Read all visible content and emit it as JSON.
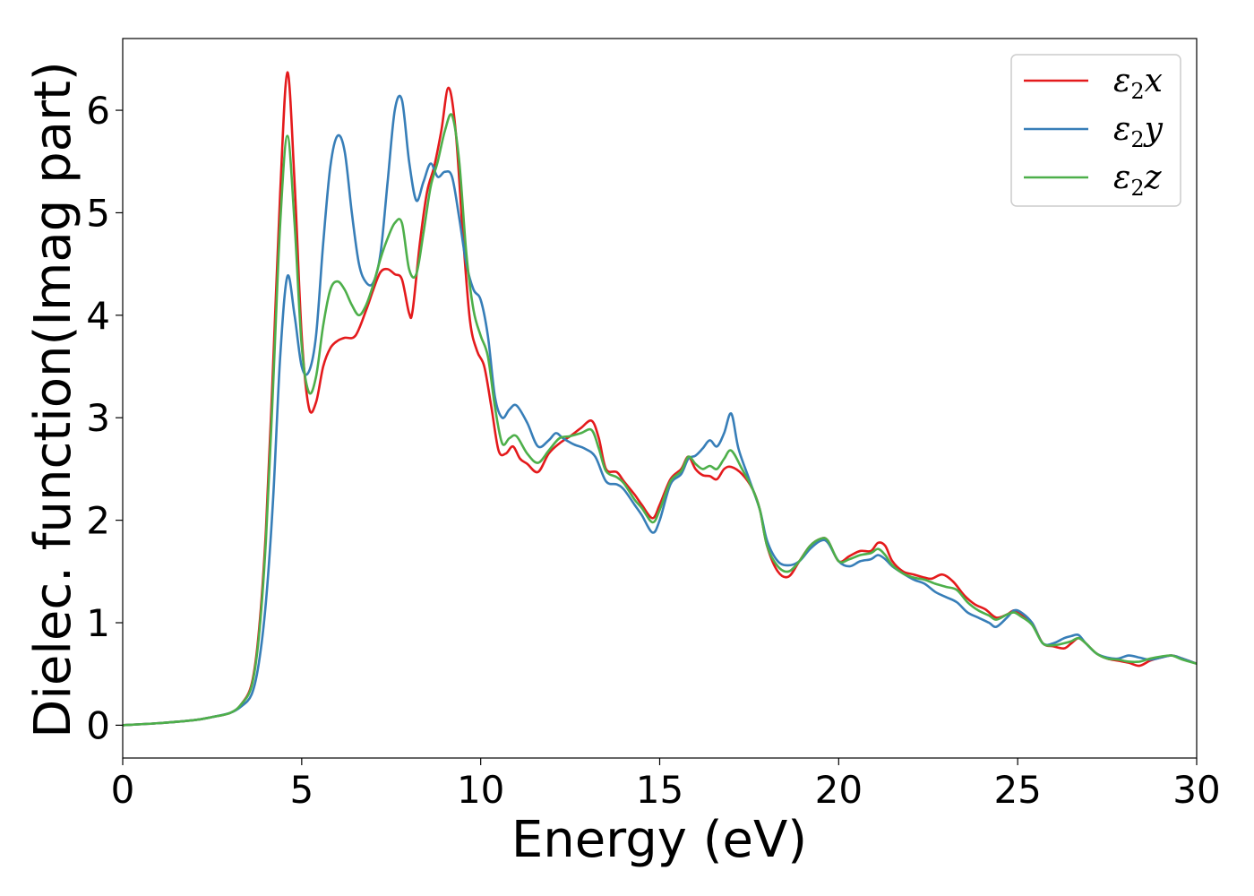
{
  "chart_data": {
    "type": "line",
    "title": "",
    "xlabel": "Energy (eV)",
    "ylabel": "Dielec. function(Imag part)",
    "xlim": [
      0,
      30
    ],
    "ylim": [
      -0.32,
      6.7
    ],
    "xticks": [
      0,
      5,
      10,
      15,
      20,
      25,
      30
    ],
    "yticks": [
      0,
      1,
      2,
      3,
      4,
      5,
      6
    ],
    "grid": false,
    "legend_position": "top-right",
    "series": [
      {
        "name": "ε2x",
        "legend_base": "ε",
        "legend_sub": "2",
        "legend_var": "x",
        "color": "#e41a1c",
        "x": [
          0,
          1,
          2,
          2.5,
          3,
          3.3,
          3.6,
          3.8,
          4.0,
          4.2,
          4.4,
          4.6,
          4.8,
          5.0,
          5.2,
          5.4,
          5.6,
          5.8,
          6.0,
          6.2,
          6.5,
          6.8,
          7.0,
          7.2,
          7.4,
          7.6,
          7.8,
          8.0,
          8.1,
          8.3,
          8.5,
          8.7,
          8.9,
          9.1,
          9.3,
          9.5,
          9.7,
          9.9,
          10.1,
          10.3,
          10.5,
          10.7,
          10.9,
          11.1,
          11.3,
          11.6,
          11.9,
          12.2,
          12.5,
          12.8,
          13.1,
          13.3,
          13.5,
          13.8,
          14.0,
          14.3,
          14.5,
          14.8,
          15.0,
          15.3,
          15.6,
          15.8,
          16.0,
          16.2,
          16.4,
          16.6,
          16.8,
          17.0,
          17.3,
          17.6,
          17.8,
          18.0,
          18.3,
          18.6,
          18.9,
          19.2,
          19.5,
          19.7,
          20.0,
          20.3,
          20.6,
          20.9,
          21.1,
          21.3,
          21.5,
          21.8,
          22.1,
          22.4,
          22.6,
          22.9,
          23.2,
          23.5,
          23.8,
          24.1,
          24.4,
          24.7,
          24.9,
          25.1,
          25.4,
          25.7,
          26.0,
          26.3,
          26.5,
          26.7,
          26.9,
          27.2,
          27.5,
          27.8,
          28.1,
          28.4,
          28.7,
          29.0,
          29.3,
          29.6,
          30.0
        ],
        "y": [
          0,
          0.02,
          0.05,
          0.08,
          0.12,
          0.2,
          0.4,
          0.9,
          1.9,
          3.5,
          5.2,
          6.37,
          5.3,
          3.8,
          3.1,
          3.15,
          3.5,
          3.68,
          3.75,
          3.78,
          3.8,
          4.05,
          4.25,
          4.42,
          4.45,
          4.4,
          4.35,
          4.02,
          4.05,
          4.7,
          5.2,
          5.45,
          5.8,
          6.22,
          5.8,
          4.8,
          3.95,
          3.65,
          3.5,
          3.1,
          2.68,
          2.65,
          2.72,
          2.6,
          2.55,
          2.47,
          2.65,
          2.75,
          2.82,
          2.9,
          2.97,
          2.8,
          2.5,
          2.47,
          2.38,
          2.25,
          2.15,
          2.02,
          2.15,
          2.4,
          2.5,
          2.62,
          2.5,
          2.44,
          2.43,
          2.4,
          2.5,
          2.52,
          2.45,
          2.3,
          2.1,
          1.75,
          1.5,
          1.45,
          1.6,
          1.75,
          1.82,
          1.8,
          1.6,
          1.65,
          1.7,
          1.7,
          1.78,
          1.75,
          1.6,
          1.5,
          1.47,
          1.44,
          1.43,
          1.47,
          1.4,
          1.27,
          1.18,
          1.13,
          1.05,
          1.08,
          1.12,
          1.08,
          1.0,
          0.8,
          0.77,
          0.75,
          0.8,
          0.85,
          0.8,
          0.7,
          0.65,
          0.63,
          0.61,
          0.58,
          0.63,
          0.66,
          0.68,
          0.65,
          0.6
        ]
      },
      {
        "name": "ε2y",
        "legend_base": "ε",
        "legend_sub": "2",
        "legend_var": "y",
        "color": "#377eb8",
        "x": [
          0,
          1,
          2,
          2.5,
          3,
          3.3,
          3.6,
          3.8,
          4.0,
          4.2,
          4.4,
          4.6,
          4.8,
          5.0,
          5.2,
          5.4,
          5.6,
          5.8,
          6.0,
          6.2,
          6.4,
          6.6,
          6.8,
          7.0,
          7.2,
          7.4,
          7.6,
          7.8,
          8.0,
          8.2,
          8.4,
          8.6,
          8.8,
          9.0,
          9.2,
          9.4,
          9.6,
          9.8,
          10.0,
          10.2,
          10.4,
          10.6,
          10.8,
          11.0,
          11.3,
          11.6,
          11.9,
          12.1,
          12.3,
          12.6,
          12.9,
          13.2,
          13.5,
          13.8,
          14.0,
          14.3,
          14.5,
          14.8,
          15.0,
          15.3,
          15.6,
          15.8,
          16.0,
          16.2,
          16.4,
          16.6,
          16.8,
          17.0,
          17.2,
          17.5,
          17.8,
          18.0,
          18.3,
          18.6,
          18.9,
          19.2,
          19.5,
          19.7,
          20.0,
          20.3,
          20.6,
          20.9,
          21.1,
          21.3,
          21.5,
          21.8,
          22.1,
          22.4,
          22.7,
          23.0,
          23.3,
          23.6,
          23.9,
          24.2,
          24.4,
          24.7,
          24.9,
          25.1,
          25.4,
          25.7,
          26.0,
          26.3,
          26.5,
          26.7,
          26.9,
          27.2,
          27.5,
          27.8,
          28.1,
          28.4,
          28.7,
          29.0,
          29.3,
          29.6,
          30.0
        ],
        "y": [
          0,
          0.02,
          0.05,
          0.08,
          0.12,
          0.18,
          0.3,
          0.6,
          1.2,
          2.2,
          3.6,
          4.38,
          4.0,
          3.5,
          3.45,
          3.8,
          4.7,
          5.45,
          5.75,
          5.6,
          5.0,
          4.5,
          4.32,
          4.32,
          4.6,
          5.3,
          6.0,
          6.1,
          5.5,
          5.12,
          5.3,
          5.48,
          5.35,
          5.4,
          5.35,
          4.95,
          4.5,
          4.25,
          4.15,
          3.8,
          3.2,
          3.0,
          3.08,
          3.12,
          2.95,
          2.72,
          2.78,
          2.85,
          2.8,
          2.74,
          2.7,
          2.62,
          2.38,
          2.35,
          2.3,
          2.15,
          2.05,
          1.88,
          2.0,
          2.35,
          2.45,
          2.6,
          2.63,
          2.7,
          2.78,
          2.72,
          2.85,
          3.04,
          2.7,
          2.4,
          2.1,
          1.8,
          1.6,
          1.56,
          1.6,
          1.72,
          1.8,
          1.78,
          1.6,
          1.55,
          1.6,
          1.62,
          1.66,
          1.62,
          1.55,
          1.48,
          1.42,
          1.38,
          1.3,
          1.25,
          1.2,
          1.1,
          1.05,
          1.0,
          0.96,
          1.05,
          1.12,
          1.1,
          1.0,
          0.8,
          0.8,
          0.85,
          0.87,
          0.88,
          0.8,
          0.7,
          0.66,
          0.65,
          0.68,
          0.66,
          0.64,
          0.66,
          0.68,
          0.65,
          0.6
        ]
      },
      {
        "name": "ε2z",
        "legend_base": "ε",
        "legend_sub": "2",
        "legend_var": "z",
        "color": "#4daf4a",
        "x": [
          0,
          1,
          2,
          2.5,
          3,
          3.3,
          3.6,
          3.8,
          4.0,
          4.2,
          4.4,
          4.6,
          4.8,
          5.0,
          5.2,
          5.4,
          5.6,
          5.8,
          6.0,
          6.2,
          6.4,
          6.6,
          6.8,
          7.0,
          7.2,
          7.4,
          7.6,
          7.8,
          8.0,
          8.2,
          8.4,
          8.6,
          8.8,
          9.0,
          9.2,
          9.4,
          9.6,
          9.8,
          10.0,
          10.2,
          10.4,
          10.6,
          10.8,
          11.0,
          11.3,
          11.6,
          11.9,
          12.2,
          12.5,
          12.8,
          13.1,
          13.3,
          13.5,
          13.8,
          14.0,
          14.3,
          14.5,
          14.8,
          15.0,
          15.3,
          15.6,
          15.8,
          16.0,
          16.2,
          16.4,
          16.6,
          16.8,
          17.0,
          17.3,
          17.6,
          17.8,
          18.0,
          18.3,
          18.6,
          18.9,
          19.2,
          19.5,
          19.7,
          20.0,
          20.3,
          20.6,
          20.9,
          21.1,
          21.3,
          21.5,
          21.8,
          22.1,
          22.4,
          22.7,
          23.0,
          23.3,
          23.6,
          23.9,
          24.2,
          24.4,
          24.7,
          24.9,
          25.1,
          25.4,
          25.7,
          26.0,
          26.3,
          26.5,
          26.7,
          26.9,
          27.2,
          27.5,
          27.8,
          28.1,
          28.4,
          28.7,
          29.0,
          29.3,
          29.6,
          30.0
        ],
        "y": [
          0,
          0.02,
          0.05,
          0.08,
          0.12,
          0.2,
          0.38,
          0.85,
          1.8,
          3.3,
          4.9,
          5.75,
          4.9,
          3.7,
          3.25,
          3.4,
          3.9,
          4.25,
          4.33,
          4.25,
          4.1,
          4.0,
          4.1,
          4.3,
          4.55,
          4.75,
          4.9,
          4.9,
          4.45,
          4.4,
          4.8,
          5.25,
          5.5,
          5.8,
          5.95,
          5.5,
          4.6,
          4.05,
          3.8,
          3.6,
          3.1,
          2.75,
          2.8,
          2.82,
          2.65,
          2.56,
          2.68,
          2.8,
          2.82,
          2.85,
          2.88,
          2.7,
          2.48,
          2.42,
          2.36,
          2.2,
          2.12,
          1.98,
          2.1,
          2.38,
          2.48,
          2.62,
          2.55,
          2.5,
          2.53,
          2.5,
          2.6,
          2.68,
          2.5,
          2.3,
          2.1,
          1.75,
          1.55,
          1.5,
          1.6,
          1.75,
          1.82,
          1.8,
          1.6,
          1.62,
          1.66,
          1.68,
          1.72,
          1.66,
          1.56,
          1.48,
          1.44,
          1.42,
          1.38,
          1.35,
          1.32,
          1.2,
          1.12,
          1.07,
          1.03,
          1.08,
          1.1,
          1.06,
          0.98,
          0.8,
          0.78,
          0.8,
          0.82,
          0.85,
          0.8,
          0.7,
          0.65,
          0.64,
          0.62,
          0.62,
          0.65,
          0.67,
          0.68,
          0.64,
          0.6
        ]
      }
    ]
  }
}
